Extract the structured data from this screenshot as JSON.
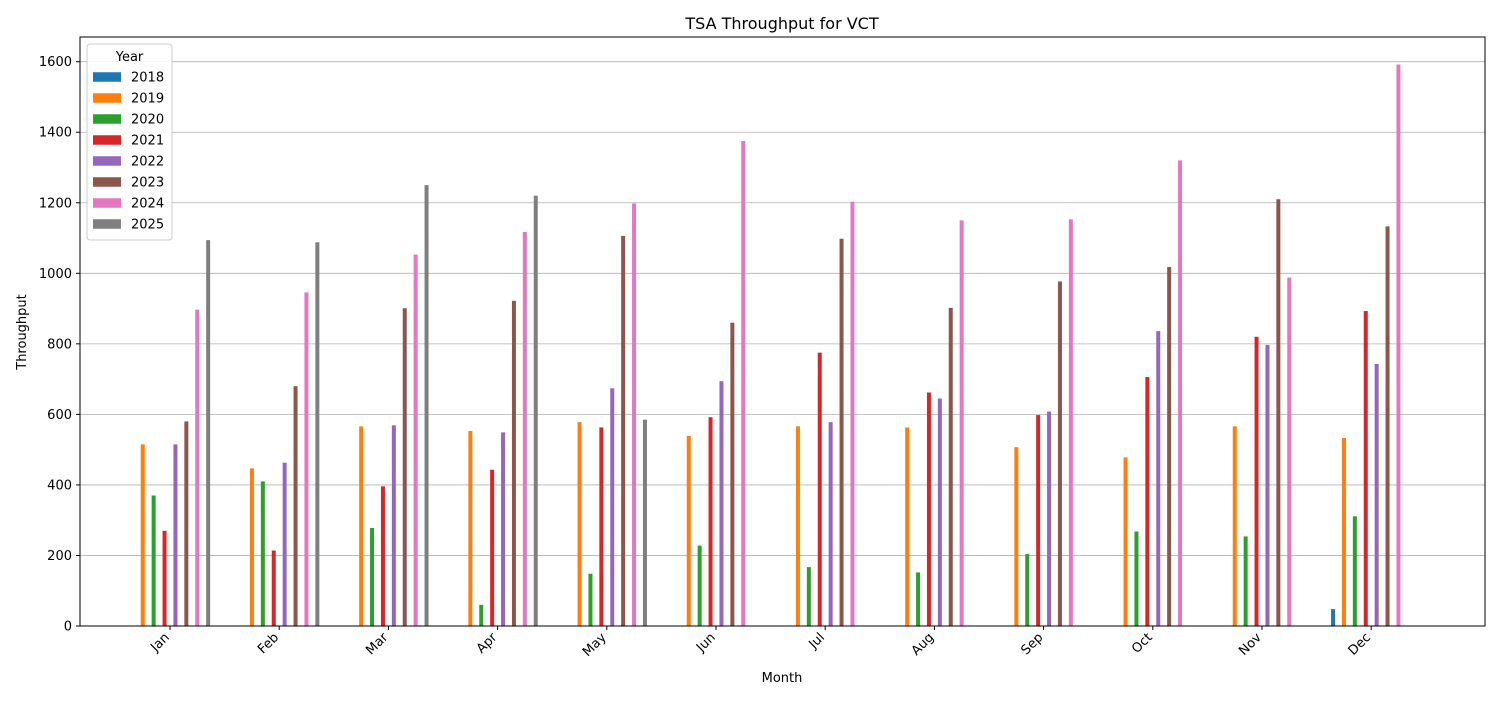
{
  "chart_data": {
    "type": "bar",
    "title": "TSA Throughput for VCT",
    "xlabel": "Month",
    "ylabel": "Throughput",
    "ylim": [
      0,
      1670
    ],
    "yticks": [
      0,
      200,
      400,
      600,
      800,
      1000,
      1200,
      1400,
      1600
    ],
    "grid": "horizontal",
    "legend_title": "Year",
    "legend_position": "top-left",
    "categories": [
      "Jan",
      "Feb",
      "Mar",
      "Apr",
      "May",
      "Jun",
      "Jul",
      "Aug",
      "Sep",
      "Oct",
      "Nov",
      "Dec"
    ],
    "series": [
      {
        "name": "2018",
        "color": "#1f77b4",
        "values": [
          null,
          null,
          null,
          null,
          null,
          null,
          null,
          null,
          null,
          null,
          null,
          48
        ]
      },
      {
        "name": "2019",
        "color": "#ff7f0e",
        "values": [
          515,
          447,
          566,
          553,
          578,
          539,
          566,
          563,
          507,
          478,
          566,
          533
        ]
      },
      {
        "name": "2020",
        "color": "#2ca02c",
        "values": [
          370,
          410,
          278,
          60,
          148,
          228,
          167,
          152,
          204,
          268,
          254,
          311
        ]
      },
      {
        "name": "2021",
        "color": "#d62728",
        "values": [
          270,
          214,
          396,
          443,
          563,
          592,
          775,
          662,
          598,
          706,
          820,
          893
        ]
      },
      {
        "name": "2022",
        "color": "#9467bd",
        "values": [
          515,
          463,
          569,
          549,
          674,
          694,
          578,
          645,
          608,
          836,
          797,
          743
        ]
      },
      {
        "name": "2023",
        "color": "#8c564b",
        "values": [
          580,
          680,
          901,
          922,
          1106,
          860,
          1098,
          902,
          977,
          1018,
          1210,
          1133
        ]
      },
      {
        "name": "2024",
        "color": "#e377c2",
        "values": [
          897,
          946,
          1053,
          1117,
          1198,
          1375,
          1203,
          1150,
          1153,
          1320,
          988,
          1592
        ]
      },
      {
        "name": "2025",
        "color": "#7f7f7f",
        "values": [
          1094,
          1088,
          1250,
          1220,
          585,
          null,
          null,
          null,
          null,
          null,
          null,
          null
        ]
      }
    ]
  }
}
